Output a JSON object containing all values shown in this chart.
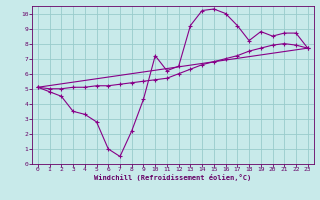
{
  "bg_color": "#c8eaea",
  "line_color": "#880088",
  "grid_color": "#99cccc",
  "xlabel": "Windchill (Refroidissement éolien,°C)",
  "xlabel_color": "#660066",
  "tick_color": "#660066",
  "spine_color": "#660066",
  "xlim": [
    -0.5,
    23.5
  ],
  "ylim": [
    0,
    10.5
  ],
  "xticks": [
    0,
    1,
    2,
    3,
    4,
    5,
    6,
    7,
    8,
    9,
    10,
    11,
    12,
    13,
    14,
    15,
    16,
    17,
    18,
    19,
    20,
    21,
    22,
    23
  ],
  "yticks": [
    0,
    1,
    2,
    3,
    4,
    5,
    6,
    7,
    8,
    9,
    10
  ],
  "curve1_x": [
    0,
    1,
    2,
    3,
    4,
    5,
    6,
    7,
    8,
    9,
    10,
    11,
    12,
    13,
    14,
    15,
    16,
    17,
    18,
    19,
    20,
    21,
    22,
    23
  ],
  "curve1_y": [
    5.1,
    4.8,
    4.5,
    3.5,
    3.3,
    2.8,
    1.0,
    0.5,
    2.2,
    4.3,
    7.2,
    6.2,
    6.5,
    9.2,
    10.2,
    10.3,
    10.0,
    9.2,
    8.2,
    8.8,
    8.5,
    8.7,
    8.7,
    7.7
  ],
  "curve2_x": [
    0,
    1,
    2,
    3,
    4,
    5,
    6,
    7,
    8,
    9,
    10,
    11,
    12,
    13,
    14,
    15,
    16,
    17,
    18,
    19,
    20,
    21,
    22,
    23
  ],
  "curve2_y": [
    5.1,
    5.0,
    5.0,
    5.1,
    5.1,
    5.2,
    5.2,
    5.3,
    5.4,
    5.5,
    5.6,
    5.7,
    6.0,
    6.3,
    6.6,
    6.8,
    7.0,
    7.2,
    7.5,
    7.7,
    7.9,
    8.0,
    7.9,
    7.7
  ],
  "curve3_x": [
    0,
    23
  ],
  "curve3_y": [
    5.1,
    7.7
  ]
}
